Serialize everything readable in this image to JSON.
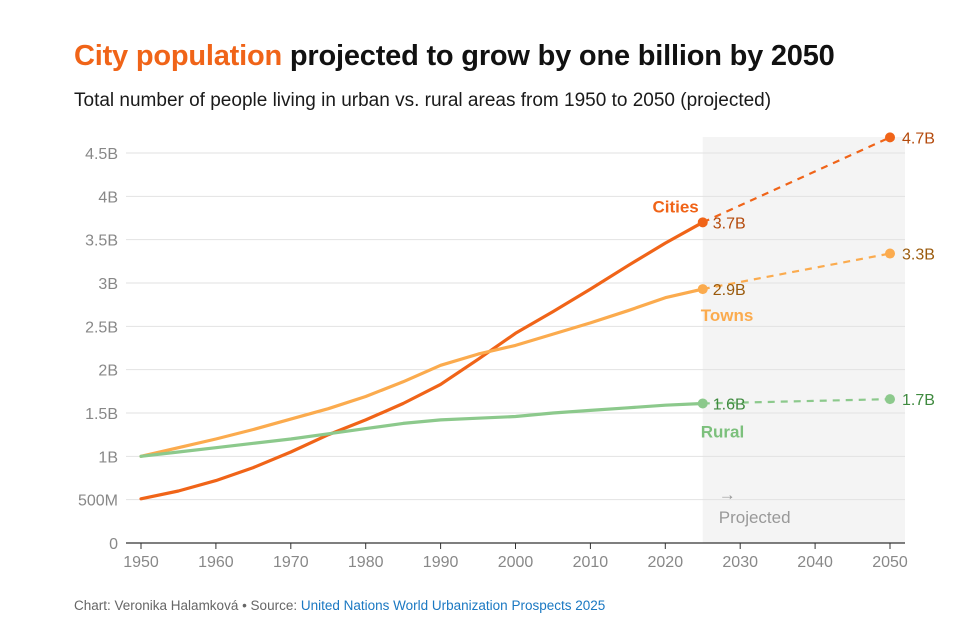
{
  "chart_data": {
    "type": "line",
    "title_highlight": "City population",
    "title_rest": " projected to grow by one billion by 2050",
    "subtitle": "Total number of people living in urban vs. rural areas from 1950 to 2050 (projected)",
    "xlabel": "",
    "ylabel": "",
    "xlim": [
      1950,
      2050
    ],
    "ylim": [
      0,
      4.5
    ],
    "x_ticks": [
      1950,
      1960,
      1970,
      1980,
      1990,
      2000,
      2010,
      2020,
      2030,
      2040,
      2050
    ],
    "y_ticks": [
      {
        "value": 0,
        "label": "0"
      },
      {
        "value": 0.5,
        "label": "500M"
      },
      {
        "value": 1,
        "label": "1B"
      },
      {
        "value": 1.5,
        "label": "1.5B"
      },
      {
        "value": 2,
        "label": "2B"
      },
      {
        "value": 2.5,
        "label": "2.5B"
      },
      {
        "value": 3,
        "label": "3B"
      },
      {
        "value": 3.5,
        "label": "3.5B"
      },
      {
        "value": 4,
        "label": "4B"
      },
      {
        "value": 4.5,
        "label": "4.5B"
      }
    ],
    "grid": true,
    "projection_start": 2025,
    "projection_label": "Projected",
    "projection_arrow": "→",
    "series": [
      {
        "name": "Cities",
        "color": "#f06418",
        "label_color": "#f06418",
        "value_color": "#b44a0c",
        "x": [
          1950,
          1955,
          1960,
          1965,
          1970,
          1975,
          1980,
          1985,
          1990,
          1995,
          2000,
          2005,
          2010,
          2015,
          2020,
          2025
        ],
        "values": [
          0.51,
          0.6,
          0.72,
          0.87,
          1.05,
          1.25,
          1.42,
          1.61,
          1.83,
          2.12,
          2.42,
          2.67,
          2.93,
          3.2,
          3.46,
          3.7
        ],
        "projection": {
          "x": [
            2025,
            2050
          ],
          "values": [
            3.7,
            4.68
          ]
        },
        "start_label": "3.7B",
        "end_label": "4.7B"
      },
      {
        "name": "Towns",
        "color": "#fbab4e",
        "label_color": "#fbab4e",
        "value_color": "#9a5a0c",
        "x": [
          1950,
          1955,
          1960,
          1965,
          1970,
          1975,
          1980,
          1985,
          1990,
          1995,
          2000,
          2005,
          2010,
          2015,
          2020,
          2025
        ],
        "values": [
          1.0,
          1.1,
          1.2,
          1.31,
          1.43,
          1.55,
          1.69,
          1.86,
          2.05,
          2.18,
          2.28,
          2.41,
          2.54,
          2.68,
          2.83,
          2.93
        ],
        "projection": {
          "x": [
            2025,
            2050
          ],
          "values": [
            2.93,
            3.34
          ]
        },
        "start_label": "2.9B",
        "end_label": "3.3B"
      },
      {
        "name": "Rural",
        "color": "#8cc98c",
        "label_color": "#7cc07c",
        "value_color": "#3f8a3f",
        "x": [
          1950,
          1955,
          1960,
          1965,
          1970,
          1975,
          1980,
          1985,
          1990,
          1995,
          2000,
          2005,
          2010,
          2015,
          2020,
          2025
        ],
        "values": [
          1.0,
          1.05,
          1.1,
          1.15,
          1.2,
          1.26,
          1.32,
          1.38,
          1.42,
          1.44,
          1.46,
          1.5,
          1.53,
          1.56,
          1.59,
          1.61
        ],
        "projection": {
          "x": [
            2025,
            2050
          ],
          "values": [
            1.61,
            1.66
          ]
        },
        "start_label": "1.6B",
        "end_label": "1.7B"
      }
    ]
  },
  "footer": {
    "credit": "Chart: Veronika Halamková • Source: ",
    "source_link": "United Nations World Urbanization Prospects 2025"
  }
}
